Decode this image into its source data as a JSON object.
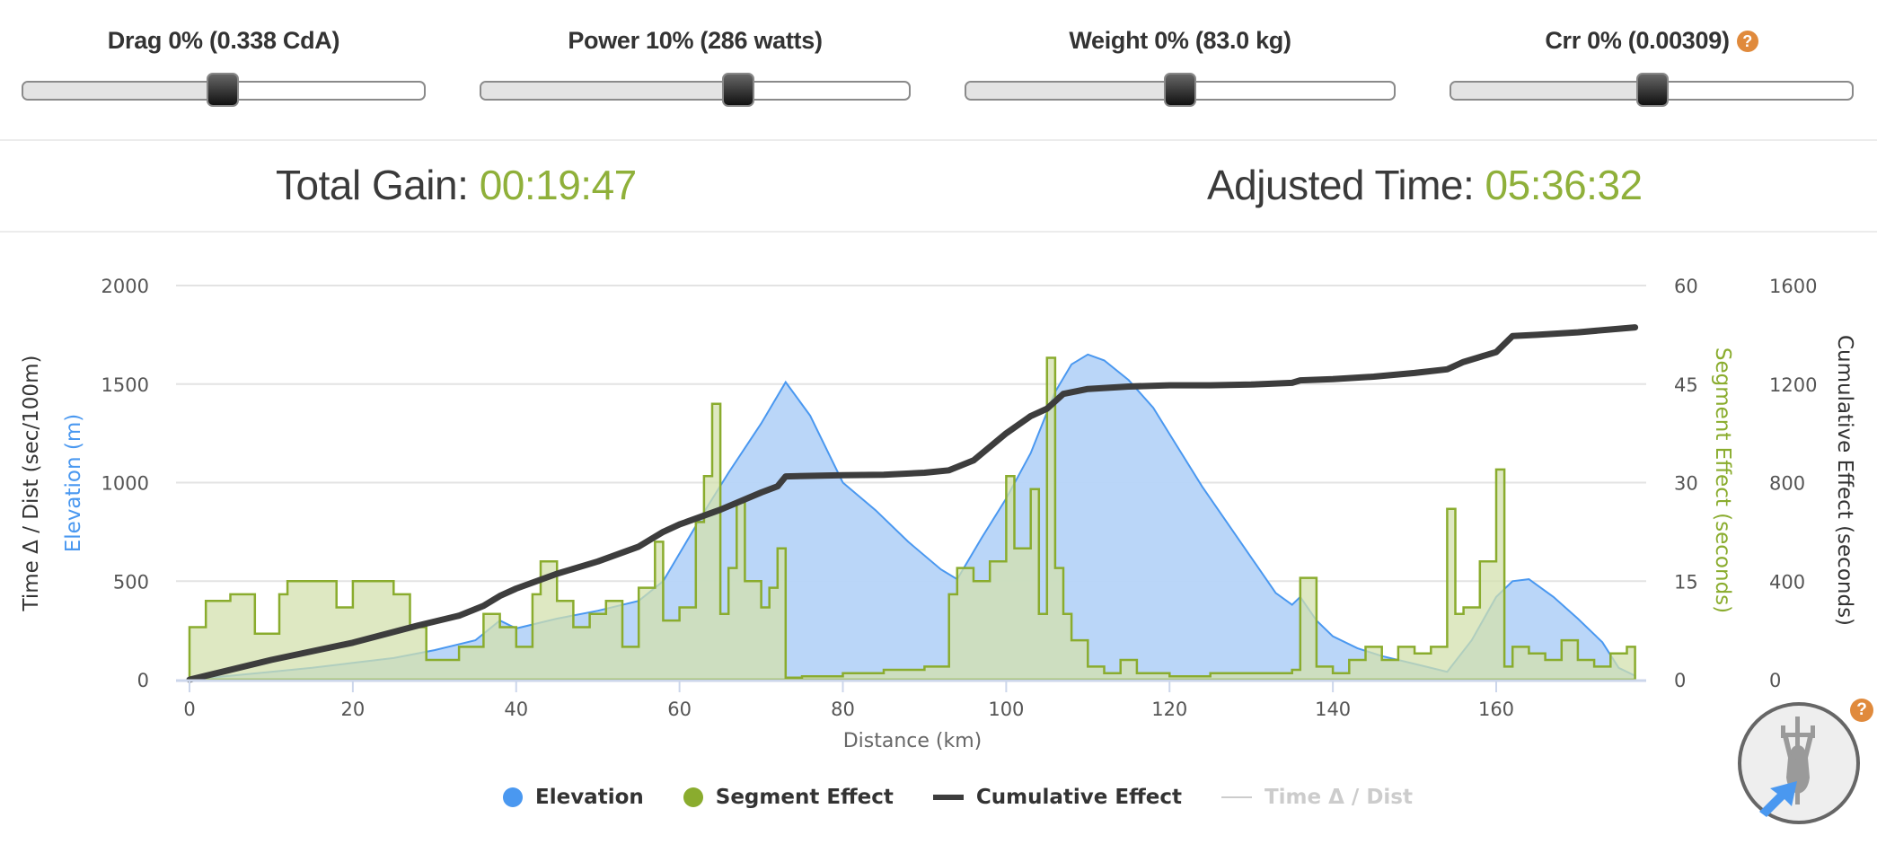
{
  "sliders": [
    {
      "id": "drag",
      "label": "Drag 0% (0.338 CdA)",
      "name": "Drag",
      "percent": 0,
      "value": "0.338 CdA",
      "thumb_pos": 0.5
    },
    {
      "id": "power",
      "label": "Power 10% (286 watts)",
      "name": "Power",
      "percent": 10,
      "value": "286 watts",
      "thumb_pos": 0.6
    },
    {
      "id": "weight",
      "label": "Weight 0% (83.0 kg)",
      "name": "Weight",
      "percent": 0,
      "value": "83.0 kg",
      "thumb_pos": 0.5
    },
    {
      "id": "crr",
      "label": "Crr 0% (0.00309)",
      "name": "Crr",
      "percent": 0,
      "value": "0.00309",
      "thumb_pos": 0.5,
      "help_icon": "?"
    }
  ],
  "summary": {
    "total_gain_label": "Total Gain:",
    "total_gain_value": "00:19:47",
    "adjusted_time_label": "Adjusted Time:",
    "adjusted_time_value": "05:36:32"
  },
  "colors": {
    "elevation": "#4a98f0",
    "elevation_fill": "#b6d4f8",
    "segment": "#8aac2e",
    "segment_fill": "#d3e0ad",
    "cumulative": "#3d3d3d",
    "time_dist": "#cccccc",
    "accent_value": "#8fb03a",
    "help": "#e08a3c"
  },
  "legend": [
    {
      "label": "Elevation",
      "symbol": "dot",
      "color": "#4a98f0",
      "visible": true
    },
    {
      "label": "Segment Effect",
      "symbol": "dot",
      "color": "#8aac2e",
      "visible": true
    },
    {
      "label": "Cumulative Effect",
      "symbol": "bar",
      "color": "#3d3d3d",
      "visible": true
    },
    {
      "label": "Time Δ / Dist",
      "symbol": "line",
      "color": "#cccccc",
      "visible": false
    }
  ],
  "bike_widget": {
    "icon": "cyclist-top-view-icon",
    "help_icon": "?"
  },
  "chart_data": {
    "type": "area",
    "title": "",
    "xlabel": "Distance (km)",
    "xlim": [
      0,
      178
    ],
    "xticks": [
      0,
      20,
      40,
      60,
      80,
      100,
      120,
      140,
      160
    ],
    "axes": {
      "left_outer": {
        "label": "Time Δ / Dist (sec/100m)",
        "color": "#333333"
      },
      "left": {
        "label": "Elevation (m)",
        "color": "#4a98f0",
        "ylim": [
          0,
          2000
        ],
        "ticks": [
          0,
          500,
          1000,
          1500,
          2000
        ]
      },
      "right": {
        "label": "Segment Effect (seconds)",
        "color": "#8aac2e",
        "ylim": [
          0,
          60
        ],
        "ticks": [
          0,
          15,
          30,
          45,
          60
        ]
      },
      "right_outer": {
        "label": "Cumulative Effect (seconds)",
        "color": "#333333",
        "ylim": [
          0,
          1600
        ],
        "ticks": [
          0,
          400,
          800,
          1200,
          1600
        ]
      }
    },
    "grid": true,
    "legend_position": "bottom",
    "series": [
      {
        "name": "Elevation",
        "type": "area",
        "axis": "left",
        "x": [
          0,
          5,
          10,
          15,
          20,
          25,
          30,
          35,
          38,
          40,
          45,
          50,
          55,
          58,
          60,
          63,
          66,
          70,
          73,
          76,
          80,
          84,
          88,
          92,
          94,
          97,
          100,
          103,
          106,
          108,
          110,
          112,
          115,
          118,
          121,
          124,
          127,
          130,
          133,
          135,
          136,
          138,
          140,
          143,
          146,
          150,
          154,
          157,
          160,
          162,
          164,
          167,
          170,
          173,
          175,
          177
        ],
        "values": [
          0,
          20,
          40,
          60,
          85,
          110,
          150,
          200,
          300,
          260,
          310,
          350,
          400,
          500,
          640,
          850,
          1050,
          1300,
          1510,
          1340,
          1000,
          860,
          700,
          560,
          510,
          720,
          920,
          1150,
          1460,
          1600,
          1650,
          1620,
          1520,
          1380,
          1180,
          980,
          800,
          620,
          440,
          380,
          420,
          300,
          220,
          160,
          120,
          80,
          40,
          200,
          420,
          500,
          510,
          420,
          310,
          190,
          60,
          20
        ]
      },
      {
        "name": "Segment Effect",
        "type": "step-area",
        "axis": "right",
        "x": [
          0,
          2,
          5,
          8,
          11,
          12,
          15,
          18,
          20,
          23,
          25,
          27,
          29,
          33,
          36,
          38,
          40,
          42,
          43,
          45,
          47,
          49,
          51,
          53,
          55,
          57,
          58,
          60,
          62,
          63,
          64,
          65,
          66,
          67,
          68,
          70,
          71,
          72,
          73,
          75,
          80,
          85,
          90,
          93,
          94,
          96,
          98,
          100,
          101,
          103,
          104,
          105,
          106,
          107,
          108,
          110,
          112,
          114,
          116,
          118,
          120,
          125,
          130,
          135,
          136,
          138,
          140,
          142,
          144,
          146,
          148,
          150,
          152,
          154,
          155,
          156,
          158,
          160,
          161,
          162,
          164,
          166,
          168,
          170,
          172,
          174,
          176
        ],
        "values": [
          8,
          12,
          13,
          7,
          13,
          15,
          15,
          11,
          15,
          15,
          13,
          8,
          3,
          5,
          10,
          8,
          5,
          13,
          18,
          12,
          8,
          10,
          12,
          5,
          14,
          21,
          9,
          11,
          24,
          31,
          42,
          10,
          17,
          27,
          15,
          11,
          14,
          20,
          0.3,
          0.5,
          1,
          1.5,
          2,
          13,
          17,
          15,
          18,
          31,
          20,
          29,
          10,
          49,
          17,
          10,
          6,
          2,
          1,
          3,
          1,
          1,
          0.5,
          1,
          1,
          1.5,
          15.5,
          2,
          1,
          3,
          5,
          3,
          5,
          4,
          5,
          26,
          10,
          11,
          18,
          32,
          2,
          5,
          4,
          3,
          6,
          3,
          2,
          4,
          5
        ]
      },
      {
        "name": "Cumulative Effect",
        "type": "line",
        "axis": "right_outer",
        "x": [
          0,
          10,
          20,
          28,
          33,
          36,
          38,
          40,
          45,
          50,
          55,
          58,
          60,
          65,
          70,
          72,
          73,
          80,
          85,
          90,
          93,
          96,
          100,
          103,
          105,
          107,
          110,
          115,
          120,
          125,
          130,
          135,
          136,
          140,
          145,
          150,
          154,
          156,
          158,
          160,
          162,
          165,
          170,
          177
        ],
        "values": [
          0,
          80,
          150,
          220,
          260,
          300,
          340,
          370,
          430,
          480,
          540,
          600,
          630,
          690,
          760,
          785,
          825,
          830,
          832,
          840,
          850,
          890,
          1000,
          1070,
          1100,
          1160,
          1180,
          1190,
          1195,
          1195,
          1198,
          1205,
          1215,
          1220,
          1230,
          1245,
          1260,
          1290,
          1310,
          1330,
          1395,
          1400,
          1410,
          1430
        ]
      },
      {
        "name": "Time Δ / Dist",
        "type": "line",
        "axis": "left_outer",
        "visible": false,
        "x": [],
        "values": []
      }
    ]
  },
  "chart_labels": {
    "xlabel": "Distance (km)",
    "left_outer": "Time Δ / Dist (sec/100m)",
    "left": "Elevation (m)",
    "right": "Segment Effect (seconds)",
    "right_outer": "Cumulative Effect (seconds)"
  }
}
